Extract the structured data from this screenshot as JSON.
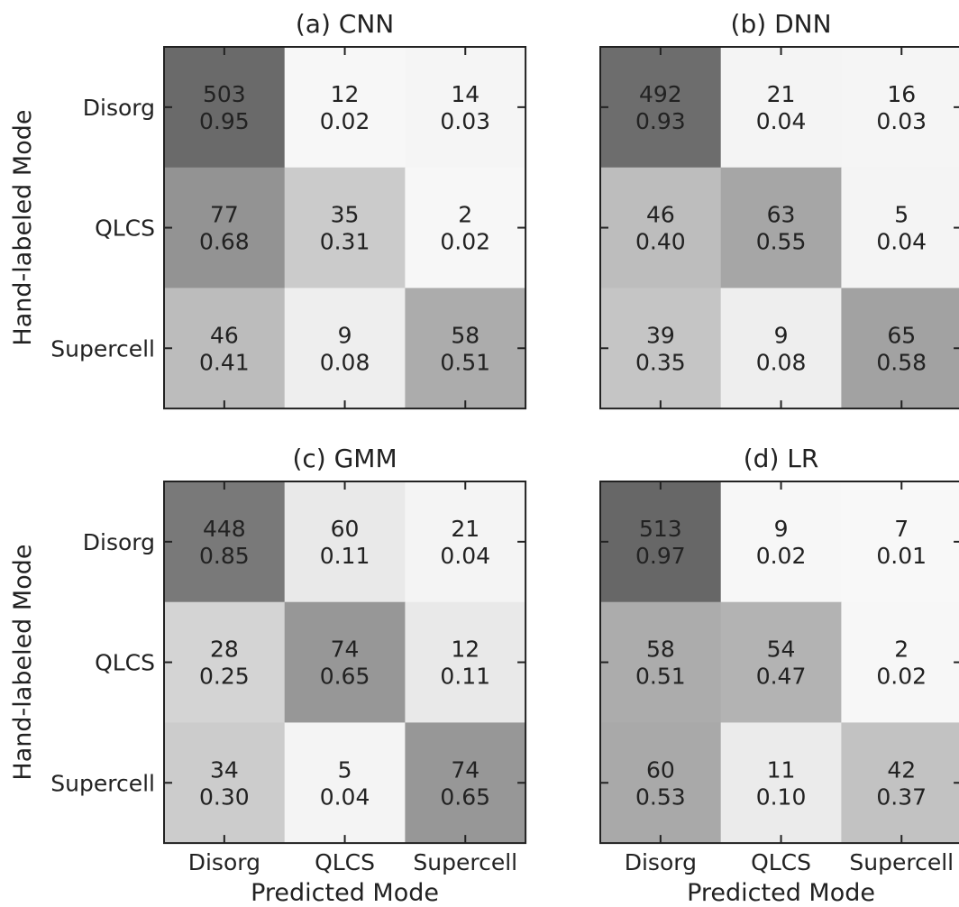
{
  "figure": {
    "row_label": "Hand-labeled Mode",
    "col_label": "Predicted Mode"
  },
  "chart_data": [
    {
      "type": "heatmap",
      "title": "(a) CNN",
      "xlabel": "Predicted Mode",
      "ylabel": "Hand-labeled Mode",
      "x_categories": [
        "Disorg",
        "QLCS",
        "Supercell"
      ],
      "y_categories": [
        "Disorg",
        "QLCS",
        "Supercell"
      ],
      "counts": [
        [
          503,
          12,
          14
        ],
        [
          77,
          35,
          2
        ],
        [
          46,
          9,
          58
        ]
      ],
      "fractions": [
        [
          "0.95",
          "0.02",
          "0.03"
        ],
        [
          "0.68",
          "0.31",
          "0.02"
        ],
        [
          "0.41",
          "0.08",
          "0.51"
        ]
      ]
    },
    {
      "type": "heatmap",
      "title": "(b) DNN",
      "xlabel": "",
      "ylabel": "",
      "x_categories": [
        "Disorg",
        "QLCS",
        "Supercell"
      ],
      "y_categories": [
        "Disorg",
        "QLCS",
        "Supercell"
      ],
      "counts": [
        [
          492,
          21,
          16
        ],
        [
          46,
          63,
          5
        ],
        [
          39,
          9,
          65
        ]
      ],
      "fractions": [
        [
          "0.93",
          "0.04",
          "0.03"
        ],
        [
          "0.40",
          "0.55",
          "0.04"
        ],
        [
          "0.35",
          "0.08",
          "0.58"
        ]
      ]
    },
    {
      "type": "heatmap",
      "title": "(c) GMM",
      "xlabel": "Predicted Mode",
      "ylabel": "Hand-labeled Mode",
      "x_categories": [
        "Disorg",
        "QLCS",
        "Supercell"
      ],
      "y_categories": [
        "Disorg",
        "QLCS",
        "Supercell"
      ],
      "counts": [
        [
          448,
          60,
          21
        ],
        [
          28,
          74,
          12
        ],
        [
          34,
          5,
          74
        ]
      ],
      "fractions": [
        [
          "0.85",
          "0.11",
          "0.04"
        ],
        [
          "0.25",
          "0.65",
          "0.11"
        ],
        [
          "0.30",
          "0.04",
          "0.65"
        ]
      ]
    },
    {
      "type": "heatmap",
      "title": "(d) LR",
      "xlabel": "Predicted Mode",
      "ylabel": "",
      "x_categories": [
        "Disorg",
        "QLCS",
        "Supercell"
      ],
      "y_categories": [
        "Disorg",
        "QLCS",
        "Supercell"
      ],
      "counts": [
        [
          513,
          9,
          7
        ],
        [
          58,
          54,
          2
        ],
        [
          60,
          11,
          42
        ]
      ],
      "fractions": [
        [
          "0.97",
          "0.02",
          "0.01"
        ],
        [
          "0.51",
          "0.47",
          "0.02"
        ],
        [
          "0.53",
          "0.10",
          "0.37"
        ]
      ]
    }
  ],
  "colors": {
    "text": "#222222",
    "frame": "#222222",
    "colormap": "grays"
  }
}
